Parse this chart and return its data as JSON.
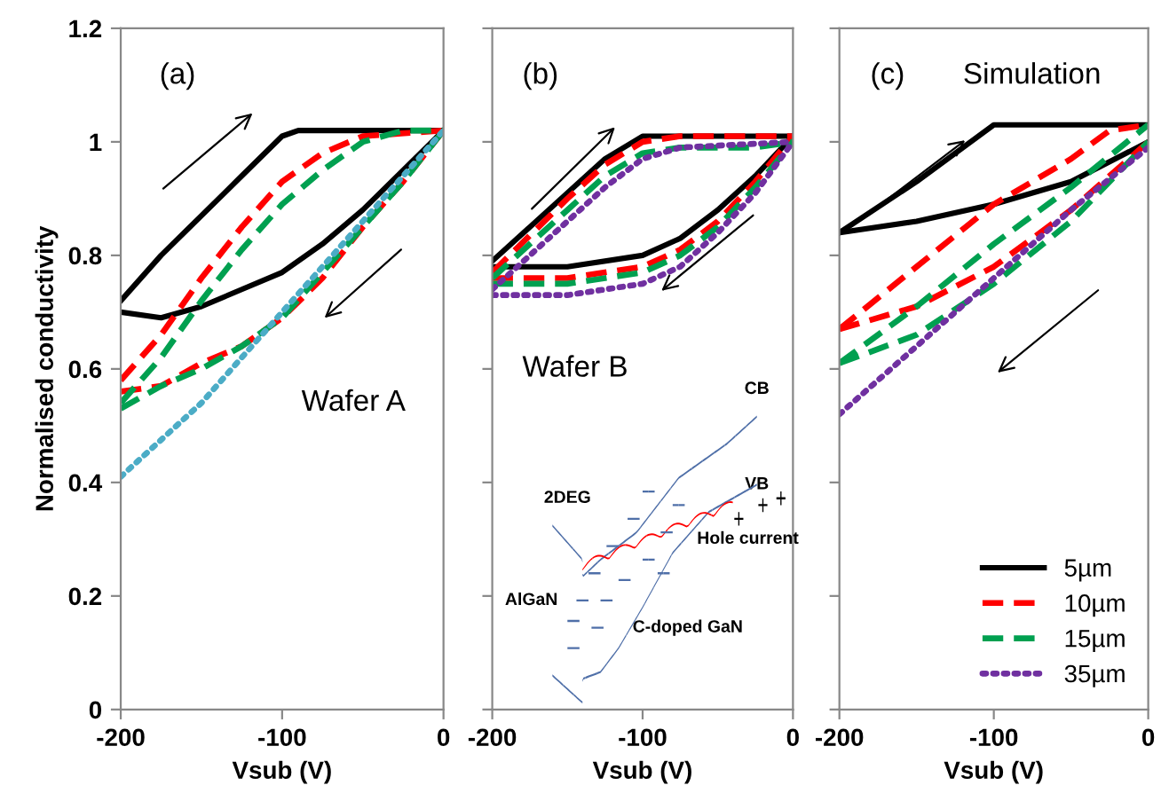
{
  "chart_data": [
    {
      "type": "line",
      "ylabel": "Normalised conductivity",
      "xlabel": "Vsub (V)",
      "xlim": [
        -200,
        0
      ],
      "ylim": [
        0,
        1.2
      ],
      "xticks": [
        -200,
        -100,
        0
      ],
      "yticks": [
        0,
        0.2,
        0.4,
        0.6,
        0.8,
        1,
        1.2
      ],
      "annotations": [
        "(a)",
        "Wafer A"
      ],
      "series": [
        {
          "color": "#000000",
          "line_style": "solid",
          "x": [
            -200,
            -175,
            -150,
            -125,
            -100,
            -90,
            -50,
            0
          ],
          "values": [
            0.72,
            0.8,
            0.87,
            0.94,
            1.01,
            1.02,
            1.02,
            1.02
          ]
        },
        {
          "color": "#000000",
          "line_style": "solid",
          "x": [
            -200,
            -175,
            -150,
            -125,
            -100,
            -75,
            -50,
            -25,
            0
          ],
          "values": [
            0.7,
            0.69,
            0.71,
            0.74,
            0.77,
            0.82,
            0.88,
            0.95,
            1.02
          ]
        },
        {
          "color": "#ff0000",
          "line_style": "dashed",
          "x": [
            -200,
            -175,
            -150,
            -125,
            -100,
            -75,
            -50,
            0
          ],
          "values": [
            0.58,
            0.66,
            0.76,
            0.85,
            0.93,
            0.98,
            1.01,
            1.02
          ]
        },
        {
          "color": "#ff0000",
          "line_style": "dashed",
          "x": [
            -200,
            -175,
            -150,
            -125,
            -100,
            -75,
            -50,
            -25,
            0
          ],
          "values": [
            0.56,
            0.57,
            0.61,
            0.64,
            0.69,
            0.76,
            0.85,
            0.93,
            1.02
          ]
        },
        {
          "color": "#00a050",
          "line_style": "dashed",
          "x": [
            -200,
            -175,
            -150,
            -125,
            -100,
            -75,
            -50,
            -25,
            0
          ],
          "values": [
            0.54,
            0.62,
            0.72,
            0.81,
            0.89,
            0.95,
            1.0,
            1.02,
            1.02
          ]
        },
        {
          "color": "#00a050",
          "line_style": "dashed",
          "x": [
            -200,
            -175,
            -150,
            -125,
            -100,
            -75,
            -50,
            -25,
            0
          ],
          "values": [
            0.53,
            0.57,
            0.6,
            0.64,
            0.69,
            0.77,
            0.85,
            0.93,
            1.02
          ]
        },
        {
          "color": "#4bacc6",
          "line_style": "dotted",
          "x": [
            -200,
            -150,
            -100,
            -50,
            0
          ],
          "values": [
            0.41,
            0.54,
            0.7,
            0.86,
            1.02
          ]
        }
      ]
    },
    {
      "type": "line",
      "xlabel": "Vsub (V)",
      "xlim": [
        -200,
        0
      ],
      "ylim": [
        0,
        1.2
      ],
      "xticks": [
        -200,
        -100,
        0
      ],
      "yticks": [
        0,
        0.2,
        0.4,
        0.6,
        0.8,
        1,
        1.2
      ],
      "tick_labels": "x",
      "annotations": [
        "(b)",
        "Wafer B",
        "CB",
        "VB",
        "2DEG",
        "Hole current",
        "AlGaN",
        "C-doped GaN"
      ],
      "series": [
        {
          "color": "#000000",
          "line_style": "solid",
          "x": [
            -200,
            -175,
            -150,
            -125,
            -100,
            -75,
            0
          ],
          "values": [
            0.79,
            0.85,
            0.91,
            0.97,
            1.01,
            1.01,
            1.01
          ]
        },
        {
          "color": "#000000",
          "line_style": "solid",
          "x": [
            -200,
            -150,
            -100,
            -75,
            -50,
            -25,
            0
          ],
          "values": [
            0.78,
            0.78,
            0.8,
            0.83,
            0.88,
            0.94,
            1.01
          ]
        },
        {
          "color": "#ff0000",
          "line_style": "dashed",
          "x": [
            -200,
            -150,
            -125,
            -100,
            -75,
            0
          ],
          "values": [
            0.77,
            0.9,
            0.96,
            1.0,
            1.01,
            1.01
          ]
        },
        {
          "color": "#ff0000",
          "line_style": "dashed",
          "x": [
            -200,
            -150,
            -100,
            -75,
            -50,
            -25,
            0
          ],
          "values": [
            0.76,
            0.76,
            0.78,
            0.81,
            0.86,
            0.93,
            1.01
          ]
        },
        {
          "color": "#00a050",
          "line_style": "dashed",
          "x": [
            -200,
            -150,
            -125,
            -100,
            -75,
            -25,
            0
          ],
          "values": [
            0.76,
            0.88,
            0.94,
            0.98,
            0.99,
            0.99,
            1.0
          ]
        },
        {
          "color": "#00a050",
          "line_style": "dashed",
          "x": [
            -200,
            -150,
            -100,
            -75,
            -50,
            -25,
            0
          ],
          "values": [
            0.75,
            0.75,
            0.77,
            0.8,
            0.85,
            0.92,
            1.0
          ]
        },
        {
          "color": "#7030a0",
          "line_style": "dotted",
          "x": [
            -200,
            -150,
            -125,
            -100,
            -75,
            0
          ],
          "values": [
            0.74,
            0.86,
            0.92,
            0.97,
            0.99,
            1.0
          ]
        },
        {
          "color": "#7030a0",
          "line_style": "dotted",
          "x": [
            -200,
            -150,
            -100,
            -75,
            -50,
            -25,
            0
          ],
          "values": [
            0.73,
            0.73,
            0.75,
            0.78,
            0.84,
            0.91,
            1.0
          ]
        }
      ]
    },
    {
      "type": "line",
      "xlabel": "Vsub (V)",
      "xlim": [
        -200,
        0
      ],
      "ylim": [
        0,
        1.2
      ],
      "xticks": [
        -200,
        -100,
        0
      ],
      "yticks": [
        0,
        0.2,
        0.4,
        0.6,
        0.8,
        1,
        1.2
      ],
      "tick_labels": "x",
      "legend": "bottom right",
      "annotations": [
        "(c)",
        "Simulation"
      ],
      "series": [
        {
          "name": "5µm",
          "color": "#000000",
          "line_style": "solid",
          "x": [
            -200,
            -150,
            -100,
            0
          ],
          "values": [
            0.84,
            0.93,
            1.03,
            1.03
          ]
        },
        {
          "color": "#000000",
          "line_style": "solid",
          "x": [
            -200,
            -150,
            -100,
            -50,
            0
          ],
          "values": [
            0.84,
            0.86,
            0.89,
            0.93,
            1.0
          ]
        },
        {
          "name": "10µm",
          "color": "#ff0000",
          "line_style": "dashed",
          "x": [
            -200,
            -150,
            -100,
            -50,
            -25,
            0
          ],
          "values": [
            0.67,
            0.78,
            0.89,
            0.97,
            1.02,
            1.03
          ]
        },
        {
          "color": "#ff0000",
          "line_style": "dashed",
          "x": [
            -200,
            -150,
            -100,
            -50,
            0
          ],
          "values": [
            0.67,
            0.71,
            0.78,
            0.88,
            1.0
          ]
        },
        {
          "name": "15µm",
          "color": "#00a050",
          "line_style": "dashed",
          "x": [
            -200,
            -150,
            -100,
            -50,
            0
          ],
          "values": [
            0.61,
            0.71,
            0.82,
            0.92,
            1.03
          ]
        },
        {
          "color": "#00a050",
          "line_style": "dashed",
          "x": [
            -200,
            -150,
            -100,
            -50,
            0
          ],
          "values": [
            0.61,
            0.66,
            0.75,
            0.86,
            1.0
          ]
        },
        {
          "name": "35µm",
          "color": "#7030a0",
          "line_style": "dotted",
          "x": [
            -200,
            -150,
            -100,
            -50,
            0
          ],
          "values": [
            0.52,
            0.64,
            0.76,
            0.88,
            0.99
          ]
        }
      ]
    }
  ]
}
